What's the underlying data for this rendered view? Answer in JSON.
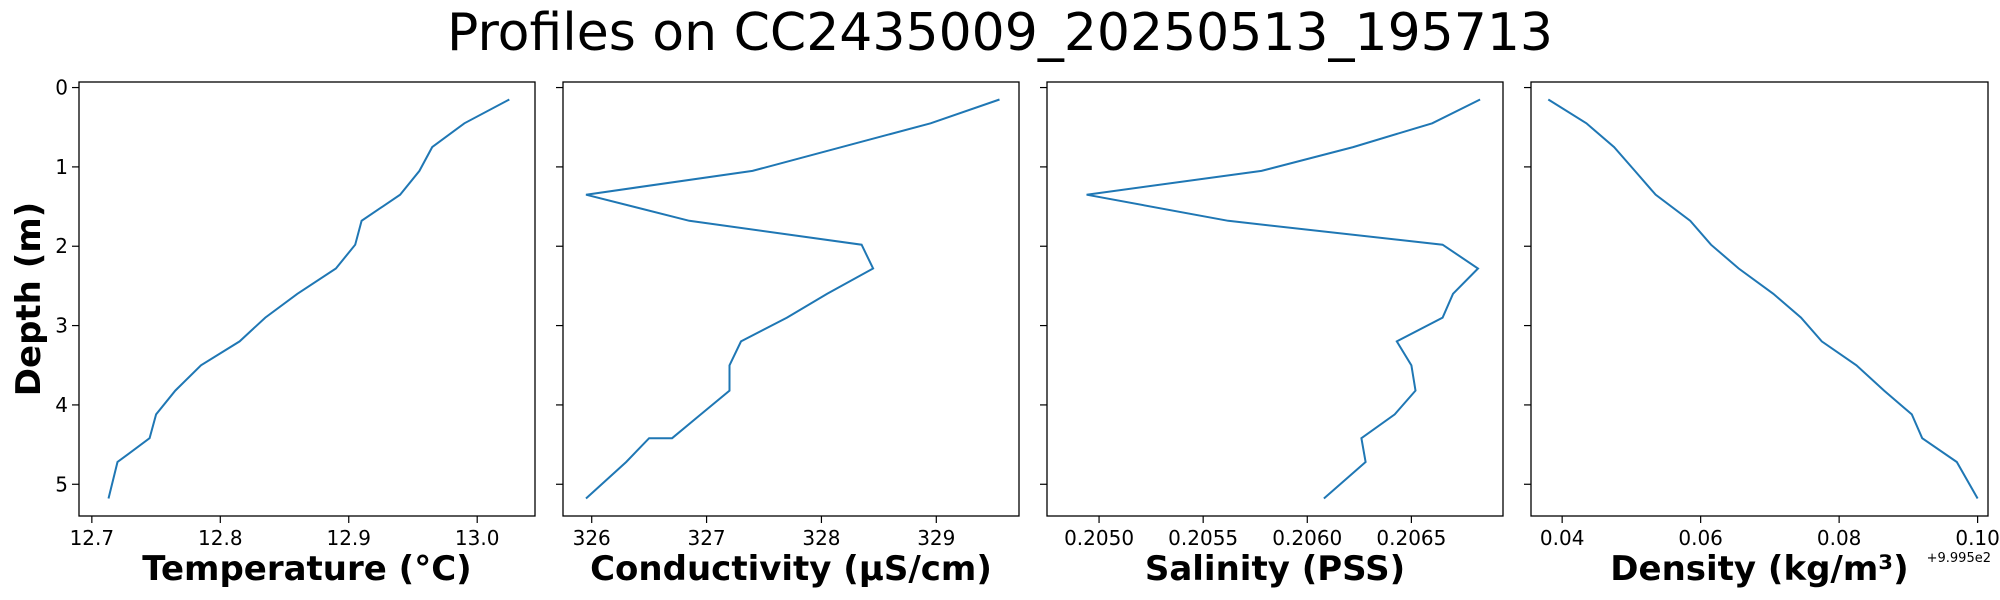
{
  "title": "Profiles on CC2435009_20250513_195713",
  "line_color": "#1f77b4",
  "chart_data": [
    {
      "type": "line",
      "xlabel": "Temperature (°C)",
      "ylabel": "Depth (m)",
      "xlim": [
        12.69,
        13.045
      ],
      "ylim": [
        5.4,
        -0.07
      ],
      "xticks": [
        12.7,
        12.8,
        12.9,
        13.0
      ],
      "xtick_labels": [
        "12.7",
        "12.8",
        "12.9",
        "13.0"
      ],
      "yticks": [
        0,
        1,
        2,
        3,
        4,
        5
      ],
      "ytick_labels": [
        "0",
        "1",
        "2",
        "3",
        "4",
        "5"
      ],
      "offset_text": "",
      "series": [
        {
          "x": [
            13.025,
            12.99,
            12.965,
            12.955,
            12.94,
            12.91,
            12.905,
            12.89,
            12.86,
            12.835,
            12.815,
            12.785,
            12.765,
            12.75,
            12.745,
            12.72,
            12.713
          ],
          "y": [
            0.15,
            0.45,
            0.75,
            1.05,
            1.35,
            1.68,
            1.98,
            2.28,
            2.6,
            2.9,
            3.2,
            3.5,
            3.82,
            4.12,
            4.42,
            4.72,
            5.18
          ]
        }
      ]
    },
    {
      "type": "line",
      "xlabel": "Conductivity (µS/cm)",
      "ylabel": "",
      "xlim": [
        325.75,
        329.72
      ],
      "ylim": [
        5.4,
        -0.07
      ],
      "xticks": [
        326,
        327,
        328,
        329
      ],
      "xtick_labels": [
        "326",
        "327",
        "328",
        "329"
      ],
      "yticks": [
        0,
        1,
        2,
        3,
        4,
        5
      ],
      "ytick_labels": [],
      "offset_text": "",
      "series": [
        {
          "x": [
            329.55,
            328.95,
            327.4,
            325.95,
            326.85,
            328.35,
            328.45,
            328.05,
            327.7,
            327.3,
            327.2,
            327.2,
            326.95,
            326.7,
            326.5,
            326.3,
            325.95
          ],
          "y": [
            0.15,
            0.45,
            1.05,
            1.35,
            1.68,
            1.98,
            2.28,
            2.6,
            2.9,
            3.2,
            3.5,
            3.82,
            4.12,
            4.42,
            4.42,
            4.72,
            5.18
          ]
        }
      ]
    },
    {
      "type": "line",
      "xlabel": "Salinity (PSS)",
      "ylabel": "",
      "xlim": [
        0.20475,
        0.20694
      ],
      "ylim": [
        5.4,
        -0.07
      ],
      "xticks": [
        0.205,
        0.2055,
        0.206,
        0.2065
      ],
      "xtick_labels": [
        "0.2050",
        "0.2055",
        "0.2060",
        "0.2065"
      ],
      "yticks": [
        0,
        1,
        2,
        3,
        4,
        5
      ],
      "ytick_labels": [],
      "offset_text": "",
      "series": [
        {
          "x": [
            0.20683,
            0.2066,
            0.20622,
            0.20578,
            0.20494,
            0.20562,
            0.20665,
            0.20682,
            0.2067,
            0.20665,
            0.20643,
            0.2065,
            0.20652,
            0.20642,
            0.20626,
            0.20628,
            0.20608
          ],
          "y": [
            0.15,
            0.45,
            0.75,
            1.05,
            1.35,
            1.68,
            1.98,
            2.28,
            2.6,
            2.9,
            3.2,
            3.5,
            3.82,
            4.12,
            4.42,
            4.72,
            5.18
          ]
        }
      ]
    },
    {
      "type": "line",
      "xlabel": "Density (kg/m³)",
      "ylabel": "",
      "xlim": [
        0.0355,
        0.1015
      ],
      "ylim": [
        5.4,
        -0.07
      ],
      "xticks": [
        0.04,
        0.06,
        0.08,
        0.1
      ],
      "xtick_labels": [
        "0.04",
        "0.06",
        "0.08",
        "0.10"
      ],
      "yticks": [
        0,
        1,
        2,
        3,
        4,
        5
      ],
      "ytick_labels": [],
      "offset_text": "+9.995e2",
      "series": [
        {
          "x": [
            0.038,
            0.0435,
            0.0475,
            0.0505,
            0.0535,
            0.0585,
            0.0615,
            0.0655,
            0.0705,
            0.0745,
            0.0775,
            0.0825,
            0.0865,
            0.0905,
            0.092,
            0.097,
            0.1
          ],
          "y": [
            0.15,
            0.45,
            0.75,
            1.05,
            1.35,
            1.68,
            1.98,
            2.28,
            2.6,
            2.9,
            3.2,
            3.5,
            3.82,
            4.12,
            4.42,
            4.72,
            5.18
          ]
        }
      ]
    }
  ]
}
